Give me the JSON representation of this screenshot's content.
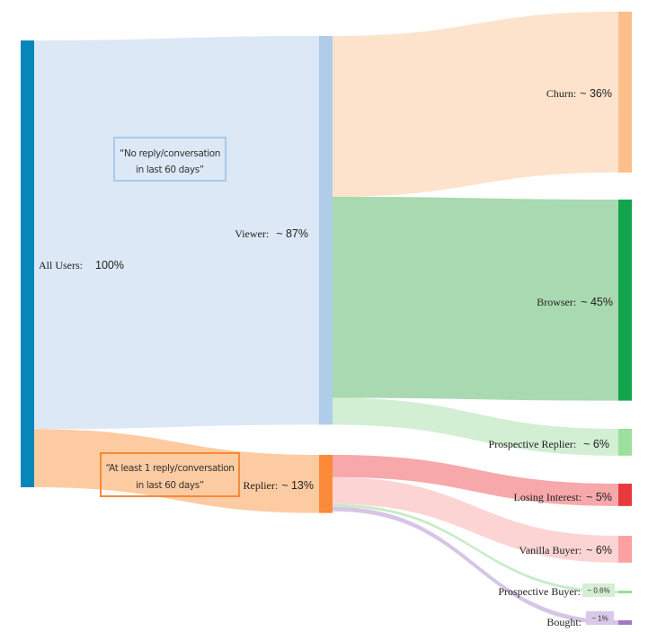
{
  "chart_data": {
    "type": "sankey",
    "title": "",
    "nodes": [
      {
        "id": "all_users",
        "name": "All Users:",
        "value_label": "100%",
        "value": 100,
        "color": "#0686b9"
      },
      {
        "id": "viewer",
        "name": "Viewer:",
        "value_label": "~ 87%",
        "value": 87,
        "color": "#afcde8"
      },
      {
        "id": "replier",
        "name": "Replier:",
        "value_label": "~ 13%",
        "value": 13,
        "color": "#fb8a3a"
      },
      {
        "id": "churn",
        "name": "Churn:",
        "value_label": "~ 36%",
        "value": 36,
        "color": "#fdbf8a"
      },
      {
        "id": "browser",
        "name": "Browser:",
        "value_label": "~ 45%",
        "value": 45,
        "color": "#14a44b"
      },
      {
        "id": "prospective_replier",
        "name": "Prospective Replier:",
        "value_label": "~ 6%",
        "value": 6,
        "color": "#9ddf9c"
      },
      {
        "id": "losing_interest",
        "name": "Losing Interest:",
        "value_label": "~ 5%",
        "value": 5,
        "color": "#e8393f"
      },
      {
        "id": "vanilla_buyer",
        "name": "Vanilla Buyer:",
        "value_label": "~ 6%",
        "value": 6,
        "color": "#fca0a0"
      },
      {
        "id": "prospective_buyer",
        "name": "Prospective Buyer:",
        "value_label": "~ 0.6%",
        "value": 0.6,
        "color": "#98dc98"
      },
      {
        "id": "bought",
        "name": "Bought:",
        "value_label": "~ 1%",
        "value": 1,
        "color": "#9f79c1"
      }
    ],
    "links": [
      {
        "source": "all_users",
        "target": "viewer",
        "value": 87,
        "color": "#dce8f5"
      },
      {
        "source": "all_users",
        "target": "replier",
        "value": 13,
        "color": "#fdcba1"
      },
      {
        "source": "viewer",
        "target": "churn",
        "value": 36,
        "color": "#fde3cc"
      },
      {
        "source": "viewer",
        "target": "browser",
        "value": 45,
        "color": "#a8d9b0"
      },
      {
        "source": "viewer",
        "target": "prospective_replier",
        "value": 6,
        "color": "#d2eed3"
      },
      {
        "source": "replier",
        "target": "losing_interest",
        "value": 5,
        "color": "#f7a8aa"
      },
      {
        "source": "replier",
        "target": "vanilla_buyer",
        "value": 6,
        "color": "#fdd4d4"
      },
      {
        "source": "replier",
        "target": "prospective_buyer",
        "value": 0.6,
        "color": "#c8ebc8"
      },
      {
        "source": "replier",
        "target": "bought",
        "value": 1,
        "color": "#d6c5e4"
      }
    ],
    "annotations": [
      {
        "target": "viewer",
        "lines": [
          "“No reply/conversation",
          "in last 60 days”"
        ],
        "border_color": "#a9c9e9"
      },
      {
        "target": "replier",
        "lines": [
          "“At least 1 reply/conversation",
          "in last 60 days”"
        ],
        "border_color": "#f58a3a"
      }
    ]
  }
}
